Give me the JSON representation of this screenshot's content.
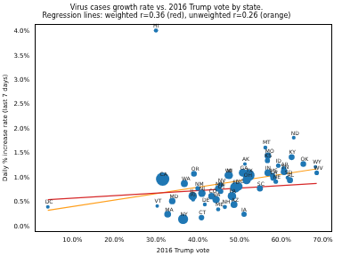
{
  "chart_data": {
    "type": "scatter",
    "title": [
      "Virus cases growth rate vs. 2016 Trump vote by state.",
      "Regression lines: weighted r=0.36 (red), unweighted r=0.26 (orange)"
    ],
    "x_label": "2016 Trump vote",
    "y_label": "Daily % increase rate (last 7 days)",
    "xlim": [
      1,
      72
    ],
    "xticks": [
      {
        "value": 10,
        "label": "10.0%"
      },
      {
        "value": 20,
        "label": "20.0%"
      },
      {
        "value": 30,
        "label": "30.0%"
      },
      {
        "value": 40,
        "label": "40.0%"
      },
      {
        "value": 50,
        "label": "50.0%"
      },
      {
        "value": 60,
        "label": "60.0%"
      },
      {
        "value": 70,
        "label": "70.0%"
      }
    ],
    "ylim": [
      -0.1,
      4.15
    ],
    "yticks": [
      {
        "value": 0,
        "label": "0.0%"
      },
      {
        "value": 0.5,
        "label": "0.5%"
      },
      {
        "value": 1,
        "label": "1.0%"
      },
      {
        "value": 1.5,
        "label": "1.5%"
      },
      {
        "value": 2,
        "label": "2.0%"
      },
      {
        "value": 2.5,
        "label": "2.5%"
      },
      {
        "value": 3,
        "label": "3.0%"
      },
      {
        "value": 3.5,
        "label": "3.5%"
      },
      {
        "value": 4,
        "label": "4.0%"
      }
    ],
    "grid": false,
    "series": [
      {
        "type": "scatter",
        "color": "#1f77b4",
        "marker": "circle",
        "point_labels": [
          "DC",
          "HI",
          "VT",
          "CA",
          "MA",
          "MD",
          "NY",
          "WA",
          "IL",
          "RI",
          "OR",
          "NM",
          "CT",
          "NJ",
          "DE",
          "CO",
          "VA",
          "ME",
          "MN",
          "NV",
          "UT",
          "NH",
          "WI",
          "MI",
          "PA",
          "AZ",
          "FL",
          "NC",
          "GA",
          "AK",
          "IA",
          "OH",
          "TX",
          "SC",
          "MT",
          "MO",
          "KS",
          "IN",
          "MS",
          "LA",
          "NE",
          "ID",
          "TN",
          "AR",
          "SD",
          "AL",
          "KY",
          "ND",
          "OK",
          "WY",
          "WV"
        ],
        "x": [
          4.1,
          30.0,
          30.3,
          31.6,
          32.8,
          33.9,
          36.5,
          36.8,
          38.8,
          38.9,
          39.1,
          40.0,
          40.9,
          41.0,
          41.7,
          43.3,
          44.4,
          44.9,
          44.9,
          45.5,
          45.5,
          46.5,
          47.2,
          47.5,
          48.2,
          48.7,
          49.0,
          49.8,
          50.8,
          51.3,
          51.1,
          51.7,
          52.2,
          54.9,
          56.2,
          56.8,
          56.7,
          56.8,
          57.9,
          58.1,
          58.7,
          59.3,
          60.7,
          60.6,
          61.5,
          62.1,
          62.5,
          63.0,
          65.3,
          68.2,
          68.5
        ],
        "values": [
          0.4,
          4.02,
          0.42,
          0.97,
          0.25,
          0.52,
          0.15,
          0.88,
          0.62,
          0.55,
          1.08,
          0.78,
          0.18,
          0.68,
          0.45,
          0.62,
          0.55,
          0.35,
          0.78,
          0.85,
          0.72,
          0.4,
          1.05,
          1.05,
          0.62,
          0.45,
          0.8,
          0.82,
          1.1,
          1.28,
          0.25,
          0.95,
          1.05,
          0.78,
          1.62,
          1.45,
          1.35,
          1.1,
          1.05,
          1.0,
          0.92,
          1.25,
          1.12,
          1.18,
          1.0,
          0.95,
          1.42,
          1.82,
          1.28,
          1.22,
          1.1
        ],
        "population": [
          0.7,
          1.4,
          0.6,
          39.5,
          6.9,
          6.0,
          19.5,
          7.6,
          12.7,
          1.1,
          4.2,
          2.1,
          3.6,
          8.9,
          1.0,
          5.8,
          8.5,
          1.3,
          5.6,
          3.1,
          3.2,
          1.4,
          5.8,
          10.0,
          12.8,
          7.3,
          21.5,
          10.5,
          10.6,
          0.7,
          3.2,
          11.7,
          29.0,
          5.1,
          1.1,
          6.1,
          2.9,
          6.7,
          3.0,
          4.6,
          1.9,
          1.8,
          6.8,
          3.0,
          0.9,
          4.9,
          4.5,
          0.8,
          4.0,
          0.6,
          1.8
        ]
      },
      {
        "type": "line",
        "color": "#d62728",
        "line_style": "solid",
        "x": [
          4.1,
          68.5
        ],
        "values": [
          0.55,
          0.88
        ]
      },
      {
        "type": "line",
        "color": "#ff9f1c",
        "line_style": "solid",
        "x": [
          4.1,
          68.5
        ],
        "values": [
          0.33,
          1.18
        ]
      }
    ]
  }
}
